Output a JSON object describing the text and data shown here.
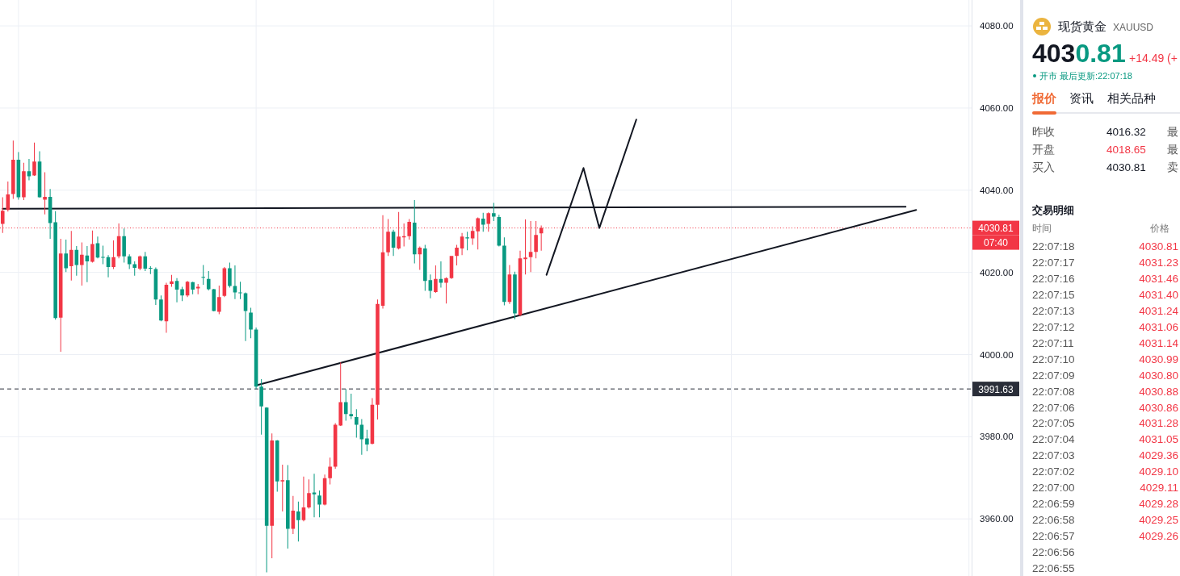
{
  "chart_data": [
    {
      "type": "candlestick",
      "categories": [
        null,
        null,
        null,
        null,
        null,
        null,
        null,
        null,
        null,
        null,
        null,
        null,
        null,
        null,
        null,
        null,
        null,
        null,
        null,
        null,
        null,
        null,
        null,
        null,
        null,
        null,
        null,
        null,
        null,
        null,
        null,
        null,
        null,
        null,
        null,
        null,
        null,
        null,
        null,
        null,
        null,
        null,
        null,
        null,
        null,
        null,
        null,
        null,
        null,
        null,
        null,
        null,
        null,
        null,
        null,
        null,
        null,
        null,
        null,
        null,
        null,
        null,
        null,
        null,
        null,
        null,
        null,
        null,
        null,
        null,
        null,
        null,
        null,
        null,
        null,
        null,
        null,
        null,
        null,
        null,
        null,
        null,
        null,
        null,
        null,
        null,
        null,
        null,
        null,
        null,
        null,
        null,
        null,
        null,
        null,
        null,
        null,
        null,
        null,
        null,
        null,
        null,
        null,
        null,
        null,
        null,
        null,
        null,
        null,
        null,
        null,
        null,
        null,
        null,
        null,
        null,
        null,
        null,
        null,
        null,
        null,
        null,
        null,
        null,
        null,
        null,
        null,
        null,
        null,
        null,
        null,
        null,
        null,
        null,
        null,
        null,
        null,
        null,
        null,
        null,
        null,
        null,
        null,
        null,
        null,
        null,
        null,
        null,
        null,
        null,
        null,
        null,
        null,
        null,
        null,
        null,
        null,
        null,
        null,
        null,
        null,
        null,
        null,
        null,
        null,
        null,
        null,
        null,
        null,
        null,
        null,
        null,
        null,
        null,
        null,
        null,
        null,
        null,
        null,
        null,
        null,
        null,
        null,
        null
      ],
      "ohlc": [
        [
          4031.8,
          4038.3,
          4029.6,
          4035.0
        ],
        [
          4035.2,
          4042.1,
          4034.8,
          4039.0
        ],
        [
          4039.1,
          4052.1,
          4037.9,
          4047.4
        ],
        [
          4047.4,
          4049.3,
          4037.7,
          4038.3
        ],
        [
          4038.3,
          4046.7,
          4037.6,
          4044.6
        ],
        [
          4044.6,
          4047.6,
          4042.4,
          4043.4
        ],
        [
          4043.6,
          4051.6,
          4043.5,
          4047.0
        ],
        [
          4047.0,
          4049.5,
          4038.2,
          4038.3
        ],
        [
          4037.7,
          4044.4,
          4034.1,
          4038.4
        ],
        [
          4038.4,
          4040.3,
          4028.2,
          4032.0
        ],
        [
          4032.2,
          4034.9,
          4008.5,
          4008.9
        ],
        [
          4009.0,
          4028.2,
          4000.7,
          4024.6
        ],
        [
          4024.6,
          4028.0,
          4020.1,
          4021.0
        ],
        [
          4021.5,
          4030.1,
          4018.0,
          4025.5
        ],
        [
          4025.5,
          4026.4,
          4019.2,
          4021.8
        ],
        [
          4021.8,
          4027.3,
          4016.8,
          4024.3
        ],
        [
          4024.1,
          4026.4,
          4017.6,
          4022.7
        ],
        [
          4022.6,
          4030.2,
          4022.4,
          4026.9
        ],
        [
          4027.1,
          4028.7,
          4023.4,
          4023.6
        ],
        [
          4023.7,
          4026.5,
          4022.0,
          4023.6
        ],
        [
          4023.7,
          4024.2,
          4018.8,
          4021.3
        ],
        [
          4021.3,
          4027.8,
          4020.8,
          4023.7
        ],
        [
          4023.9,
          4031.9,
          4023.4,
          4028.8
        ],
        [
          4028.8,
          4030.7,
          4022.4,
          4023.9
        ],
        [
          4023.9,
          4024.4,
          4020.8,
          4022.0
        ],
        [
          4022.0,
          4022.7,
          4019.2,
          4021.1
        ],
        [
          4020.9,
          4024.1,
          4020.5,
          4023.9
        ],
        [
          4023.9,
          4025.0,
          4020.3,
          4020.9
        ],
        [
          4021.1,
          4021.5,
          4019.6,
          4020.9
        ],
        [
          4020.8,
          4021.2,
          4012.1,
          4013.4
        ],
        [
          4013.4,
          4014.4,
          4008.1,
          4008.3
        ],
        [
          4008.1,
          4017.5,
          4005.3,
          4017.0
        ],
        [
          4017.2,
          4019.4,
          4016.5,
          4017.8
        ],
        [
          4017.9,
          4018.6,
          4012.7,
          4015.8
        ],
        [
          4015.9,
          4016.5,
          4013.0,
          4014.4
        ],
        [
          4014.4,
          4017.9,
          4014.0,
          4017.7
        ],
        [
          4017.6,
          4017.7,
          4014.7,
          4015.8
        ],
        [
          4016.1,
          4017.2,
          4014.7,
          4016.5
        ],
        [
          4018.9,
          4021.8,
          4017.0,
          4018.7
        ],
        [
          4018.4,
          4020.3,
          4015.6,
          4015.9
        ],
        [
          4015.9,
          4016.0,
          4010.5,
          4010.6
        ],
        [
          4010.4,
          4016.8,
          4009.8,
          4014.0
        ],
        [
          4014.3,
          4021.3,
          4014.0,
          4021.0
        ],
        [
          4021.0,
          4022.4,
          4016.3,
          4016.7
        ],
        [
          4016.7,
          4021.7,
          4013.5,
          4015.1
        ],
        [
          4015.1,
          4017.7,
          4013.5,
          4014.9
        ],
        [
          4014.9,
          4015.1,
          4003.3,
          4010.6
        ],
        [
          4010.2,
          4011.4,
          4004.0,
          4006.1
        ],
        [
          4006.1,
          4006.6,
          3991.6,
          3992.2
        ],
        [
          3992.2,
          3994.0,
          3980.5,
          3987.4
        ],
        [
          3987.1,
          3987.2,
          3947.0,
          3958.3
        ],
        [
          3958.3,
          3980.8,
          3950.4,
          3979.1
        ],
        [
          3979.1,
          3979.2,
          3966.6,
          3969.1
        ],
        [
          3969.1,
          3973.2,
          3961.8,
          3969.4
        ],
        [
          3969.4,
          3973.1,
          3952.8,
          3957.6
        ],
        [
          3957.6,
          3965.6,
          3956.3,
          3962.0
        ],
        [
          3961.8,
          3964.2,
          3954.5,
          3959.7
        ],
        [
          3959.7,
          3970.3,
          3959.4,
          3962.8
        ],
        [
          3962.8,
          3969.6,
          3962.5,
          3966.3
        ],
        [
          3966.4,
          3971.0,
          3960.4,
          3966.0
        ],
        [
          3965.7,
          3966.9,
          3960.4,
          3963.5
        ],
        [
          3963.5,
          3970.8,
          3963.3,
          3969.9
        ],
        [
          3969.9,
          3974.9,
          3968.4,
          3972.7
        ],
        [
          3972.7,
          3983.3,
          3972.2,
          3982.9
        ],
        [
          3982.7,
          3998.1,
          3982.6,
          3988.4
        ],
        [
          3988.4,
          3991.6,
          3983.9,
          3985.5
        ],
        [
          3985.5,
          3990.5,
          3984.3,
          3985.0
        ],
        [
          3984.8,
          3986.7,
          3979.8,
          3982.9
        ],
        [
          3982.9,
          3984.3,
          3975.6,
          3979.4
        ],
        [
          3979.6,
          3981.7,
          3976.5,
          3978.1
        ],
        [
          3978.3,
          3989.4,
          3978.1,
          3987.8
        ],
        [
          3987.8,
          4013.4,
          3984.2,
          4012.3
        ],
        [
          4011.9,
          4033.9,
          4011.2,
          4024.9
        ],
        [
          4024.9,
          4033.0,
          4024.0,
          4029.9
        ],
        [
          4029.9,
          4030.4,
          4024.0,
          4026.0
        ],
        [
          4025.8,
          4034.7,
          4025.6,
          4028.7
        ],
        [
          4028.5,
          4031.9,
          4026.3,
          4028.8
        ],
        [
          4028.8,
          4033.0,
          4028.0,
          4032.3
        ],
        [
          4032.1,
          4037.6,
          4022.2,
          4024.4
        ],
        [
          4024.4,
          4026.3,
          4020.6,
          4026.0
        ],
        [
          4025.8,
          4026.7,
          4015.5,
          4017.9
        ],
        [
          4018.1,
          4019.5,
          4013.7,
          4015.5
        ],
        [
          4015.2,
          4021.7,
          4015.0,
          4018.4
        ],
        [
          4018.4,
          4022.7,
          4016.3,
          4017.5
        ],
        [
          4017.5,
          4018.8,
          4012.4,
          4018.6
        ],
        [
          4018.6,
          4024.0,
          4018.4,
          4024.0
        ],
        [
          4024.0,
          4026.7,
          4021.7,
          4026.0
        ],
        [
          4025.8,
          4029.6,
          4024.2,
          4028.7
        ],
        [
          4028.5,
          4029.9,
          4025.4,
          4028.3
        ],
        [
          4028.3,
          4031.2,
          4026.7,
          4030.1
        ],
        [
          4030.0,
          4033.4,
          4025.6,
          4033.2
        ],
        [
          4033.1,
          4034.5,
          4029.9,
          4031.6
        ],
        [
          4031.8,
          4034.6,
          4029.9,
          4034.4
        ],
        [
          4034.4,
          4036.9,
          4032.5,
          4033.6
        ],
        [
          4033.5,
          4034.0,
          4026.3,
          4026.5
        ],
        [
          4026.5,
          4028.5,
          4012.0,
          4012.8
        ],
        [
          4012.8,
          4021.8,
          4012.3,
          4019.5
        ],
        [
          4019.5,
          4020.2,
          4008.6,
          4010.0
        ],
        [
          4009.6,
          4025.3,
          4009.3,
          4023.4
        ],
        [
          4023.2,
          4032.9,
          4019.5,
          4023.6
        ],
        [
          4023.7,
          4032.5,
          4020.1,
          4025.0
        ],
        [
          4025.0,
          4032.5,
          4023.4,
          4029.1
        ],
        [
          4029.5,
          4031.4,
          4025.3,
          4030.81
        ],
        null,
        null,
        null,
        null,
        null,
        null,
        null,
        null,
        null,
        null,
        null,
        null,
        null,
        null,
        null,
        null,
        null,
        null,
        null,
        null,
        null,
        null,
        null,
        null,
        null,
        null,
        null,
        null,
        null,
        null,
        null,
        null,
        null,
        null,
        null,
        null,
        null,
        null,
        null,
        null,
        null,
        null,
        null,
        null,
        null,
        null,
        null,
        null,
        null,
        null,
        null,
        null,
        null,
        null,
        null,
        null,
        null,
        null,
        null,
        null,
        null,
        null,
        null,
        null,
        null,
        null,
        null,
        null,
        null,
        null,
        null,
        null,
        null,
        null,
        null,
        null,
        null,
        null,
        null,
        null,
        null
      ],
      "colors": [
        "#f23645",
        "#f23645",
        "#f23645",
        "#089981",
        "#f23645",
        "#089981",
        "#f23645",
        "#089981",
        "#f23645",
        "#089981",
        "#089981",
        "#f23645",
        "#089981",
        "#f23645",
        "#089981",
        "#f23645",
        "#089981",
        "#f23645",
        "#089981",
        "#089981",
        "#089981",
        "#f23645",
        "#f23645",
        "#089981",
        "#089981",
        "#089981",
        "#f23645",
        "#089981",
        "#089981",
        "#089981",
        "#089981",
        "#f23645",
        "#f23645",
        "#089981",
        "#089981",
        "#f23645",
        "#089981",
        "#f23645",
        "#089981",
        "#089981",
        "#089981",
        "#f23645",
        "#f23645",
        "#089981",
        "#089981",
        "#089981",
        "#089981",
        "#089981",
        "#089981",
        "#089981",
        "#089981",
        "#f23645",
        "#089981",
        "#f23645",
        "#089981",
        "#f23645",
        "#089981",
        "#f23645",
        "#f23645",
        "#089981",
        "#089981",
        "#f23645",
        "#f23645",
        "#f23645",
        "#f23645",
        "#089981",
        "#089981",
        "#089981",
        "#089981",
        "#089981",
        "#f23645",
        "#f23645",
        "#f23645",
        "#f23645",
        "#089981",
        "#f23645",
        "#f23645",
        "#f23645",
        "#089981",
        "#f23645",
        "#089981",
        "#089981",
        "#f23645",
        "#089981",
        "#f23645",
        "#f23645",
        "#f23645",
        "#f23645",
        "#089981",
        "#f23645",
        "#f23645",
        "#089981",
        "#f23645",
        "#089981",
        "#089981",
        "#089981",
        "#f23645",
        "#089981",
        "#f23645",
        "#f23645",
        "#f23645",
        "#f23645",
        "#f23645",
        null,
        null,
        null,
        null,
        null,
        null,
        null,
        null,
        null,
        null,
        null,
        null,
        null,
        null,
        null,
        null,
        null,
        null,
        null,
        null,
        null,
        null,
        null,
        null,
        null,
        null,
        null,
        null,
        null,
        null,
        null,
        null,
        null,
        null,
        null,
        null,
        null,
        null,
        null,
        null,
        null,
        null,
        null,
        null,
        null,
        null,
        null,
        null,
        null,
        null,
        null,
        null,
        null,
        null,
        null,
        null,
        null,
        null,
        null,
        null,
        null,
        null,
        null,
        null,
        null,
        null,
        null,
        null,
        null,
        null,
        null,
        null,
        null,
        null,
        null,
        null,
        null,
        null,
        null,
        null,
        null
      ],
      "series": [
        {
          "type": "line",
          "color": "#131722",
          "values": [
            4035.5,
            null,
            null,
            null,
            null,
            null,
            null,
            null,
            null,
            null,
            null,
            null,
            null,
            null,
            null,
            null,
            null,
            null,
            null,
            null,
            null,
            null,
            null,
            null,
            null,
            null,
            null,
            null,
            null,
            null,
            null,
            null,
            null,
            null,
            null,
            null,
            null,
            null,
            null,
            null,
            null,
            null,
            null,
            null,
            null,
            null,
            null,
            null,
            null,
            null,
            null,
            null,
            null,
            null,
            null,
            null,
            null,
            null,
            null,
            null,
            null,
            null,
            null,
            null,
            null,
            null,
            null,
            null,
            null,
            null,
            null,
            null,
            null,
            null,
            null,
            null,
            null,
            null,
            null,
            null,
            null,
            null,
            null,
            null,
            null,
            null,
            null,
            null,
            null,
            null,
            null,
            null,
            null,
            null,
            null,
            null,
            null,
            null,
            null,
            null,
            null,
            null,
            null,
            null,
            null,
            null,
            null,
            null,
            null,
            null,
            null,
            null,
            null,
            null,
            null,
            null,
            null,
            null,
            null,
            null,
            null,
            null,
            null,
            null,
            null,
            null,
            null,
            null,
            null,
            null,
            null,
            null,
            null,
            null,
            null,
            null,
            null,
            null,
            null,
            null,
            null,
            null,
            null,
            null,
            null,
            null,
            null,
            null,
            null,
            null,
            null,
            null,
            null,
            null,
            null,
            null,
            null,
            null,
            null,
            null,
            null,
            null,
            null,
            null,
            null,
            null,
            null,
            null,
            null,
            null,
            null,
            4036.0,
            null,
            null,
            null,
            null,
            null,
            null,
            null,
            null,
            null,
            null,
            null,
            null
          ]
        },
        {
          "type": "line",
          "color": "#131722",
          "values": [
            null,
            null,
            null,
            null,
            null,
            null,
            null,
            null,
            null,
            null,
            null,
            null,
            null,
            null,
            null,
            null,
            null,
            null,
            null,
            null,
            null,
            null,
            null,
            null,
            null,
            null,
            null,
            null,
            null,
            null,
            null,
            null,
            null,
            null,
            null,
            null,
            null,
            null,
            null,
            null,
            null,
            null,
            null,
            null,
            null,
            null,
            null,
            null,
            3992.5,
            null,
            null,
            null,
            null,
            null,
            null,
            null,
            null,
            null,
            null,
            null,
            null,
            null,
            null,
            null,
            null,
            null,
            null,
            null,
            null,
            null,
            null,
            null,
            null,
            null,
            null,
            null,
            null,
            null,
            null,
            null,
            null,
            null,
            null,
            null,
            null,
            null,
            null,
            null,
            null,
            null,
            null,
            null,
            null,
            null,
            null,
            null,
            null,
            null,
            null,
            null,
            null,
            null,
            null,
            null,
            null,
            null,
            null,
            null,
            null,
            null,
            null,
            null,
            null,
            null,
            null,
            null,
            null,
            null,
            null,
            null,
            null,
            null,
            null,
            null,
            null,
            null,
            null,
            null,
            null,
            null,
            null,
            null,
            null,
            null,
            null,
            null,
            null,
            null,
            null,
            null,
            null,
            null,
            null,
            null,
            null,
            null,
            null,
            null,
            null,
            null,
            null,
            null,
            null,
            null,
            null,
            null,
            null,
            null,
            null,
            null,
            null,
            null,
            null,
            null,
            null,
            null,
            null,
            null,
            null,
            null,
            null,
            null,
            null,
            4035.2,
            null,
            null,
            null,
            null,
            null,
            null,
            null,
            null,
            null,
            null
          ]
        },
        {
          "type": "line",
          "color": "#131722",
          "values": [
            null,
            null,
            null,
            null,
            null,
            null,
            null,
            null,
            null,
            null,
            null,
            null,
            null,
            null,
            null,
            null,
            null,
            null,
            null,
            null,
            null,
            null,
            null,
            null,
            null,
            null,
            null,
            null,
            null,
            null,
            null,
            null,
            null,
            null,
            null,
            null,
            null,
            null,
            null,
            null,
            null,
            null,
            null,
            null,
            null,
            null,
            null,
            null,
            null,
            null,
            null,
            null,
            null,
            null,
            null,
            null,
            null,
            null,
            null,
            null,
            null,
            null,
            null,
            null,
            null,
            null,
            null,
            null,
            null,
            null,
            null,
            null,
            null,
            null,
            null,
            null,
            null,
            null,
            null,
            null,
            null,
            null,
            null,
            null,
            null,
            null,
            null,
            null,
            null,
            null,
            null,
            null,
            null,
            null,
            null,
            null,
            null,
            null,
            null,
            null,
            null,
            null,
            null,
            4019.4,
            null,
            null,
            null,
            null,
            null,
            null,
            4045.4,
            null,
            null,
            4030.8,
            null,
            null,
            null,
            null,
            null,
            null,
            4057.2,
            null,
            null,
            null,
            null,
            null,
            null,
            null,
            null,
            null,
            null,
            null,
            null,
            null,
            null,
            null,
            null,
            null,
            null,
            null,
            null,
            null,
            null,
            null,
            null,
            null,
            null,
            null,
            null,
            null,
            null,
            null,
            null,
            null,
            null,
            null,
            null,
            null,
            null,
            null,
            null,
            null,
            null,
            null,
            null,
            null,
            null,
            null,
            null,
            null,
            null,
            null,
            null,
            null,
            null,
            null,
            null,
            null,
            null,
            null,
            null,
            null,
            null,
            null
          ]
        }
      ],
      "ylim": [
        3946.1,
        4086.3
      ],
      "yticks": [
        {
          "value": 3960,
          "label": "3960.00"
        },
        {
          "value": 3980,
          "label": "3980.00"
        },
        {
          "value": 4000,
          "label": "4000.00"
        },
        {
          "value": 4020,
          "label": "4020.00"
        },
        {
          "value": 4040,
          "label": "4040.00"
        },
        {
          "value": 4060,
          "label": "4060.00"
        },
        {
          "value": 4080,
          "label": "4080.00"
        }
      ],
      "tick_labels": "y",
      "grid": true,
      "ref_lines": [
        {
          "axis": "y",
          "value": 4030.81,
          "label": "4030.81",
          "color": "#f23645",
          "line_style": "dotted"
        },
        {
          "axis": "y",
          "value": 3991.63,
          "label": "3991.63",
          "color": "#2a2e39",
          "line_style": "dashed"
        }
      ],
      "annotations": [
        "07:40"
      ]
    },
    {
      "type": "other",
      "title": "现货黄金",
      "subtitle": "XAUUSD",
      "annotations": [
        "4030.81",
        "+14.49 (+",
        "开市 最后更新:22:07:18",
        "报价",
        "资讯",
        "相关品种",
        "昨收",
        "4016.32",
        "最",
        "开盘",
        "4018.65",
        "最",
        "买入",
        "4030.81",
        "卖"
      ]
    },
    {
      "type": "heatmap",
      "title": "交易明细",
      "ylabel": "时间",
      "categories": [
        "价格"
      ],
      "y_categories": [
        "22:07:18",
        "22:07:17",
        "22:07:16",
        "22:07:15",
        "22:07:13",
        "22:07:12",
        "22:07:11",
        "22:07:10",
        "22:07:09",
        "22:07:08",
        "22:07:06",
        "22:07:05",
        "22:07:04",
        "22:07:03",
        "22:07:02",
        "22:07:00",
        "22:06:59",
        "22:06:58",
        "22:06:57",
        "22:06:56",
        "22:06:55"
      ],
      "cells": [
        [
          4030.81
        ],
        [
          4031.23
        ],
        [
          4031.46
        ],
        [
          4031.4
        ],
        [
          4031.24
        ],
        [
          4031.06
        ],
        [
          4031.14
        ],
        [
          4030.99
        ],
        [
          4030.8
        ],
        [
          4030.88
        ],
        [
          4030.86
        ],
        [
          4031.28
        ],
        [
          4031.05
        ],
        [
          4029.36
        ],
        [
          4029.1
        ],
        [
          4029.11
        ],
        [
          4029.28
        ],
        [
          4029.25
        ],
        [
          4029.26
        ],
        [
          null
        ],
        [
          null
        ]
      ],
      "cell_labels": [
        [
          "4030.81"
        ],
        [
          "4031.23"
        ],
        [
          "4031.46"
        ],
        [
          "4031.40"
        ],
        [
          "4031.24"
        ],
        [
          "4031.06"
        ],
        [
          "4031.14"
        ],
        [
          "4030.99"
        ],
        [
          "4030.80"
        ],
        [
          "4030.88"
        ],
        [
          "4030.86"
        ],
        [
          "4031.28"
        ],
        [
          "4031.05"
        ],
        [
          "4029.36"
        ],
        [
          "4029.10"
        ],
        [
          "4029.11"
        ],
        [
          "4029.28"
        ],
        [
          "4029.25"
        ],
        [
          "4029.26"
        ],
        [
          null
        ],
        [
          null
        ]
      ]
    }
  ]
}
